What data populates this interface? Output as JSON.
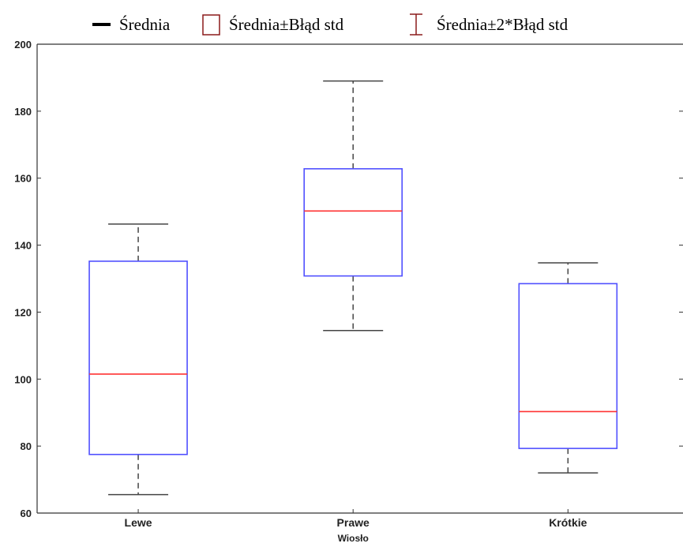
{
  "chart_data": {
    "type": "box",
    "legend": {
      "position": "top",
      "items": [
        {
          "symbol": "line",
          "label": "Średnia"
        },
        {
          "symbol": "box",
          "label": "Średnia±Błąd std"
        },
        {
          "symbol": "whisker",
          "label": "Średnia±2*Błąd std"
        }
      ]
    },
    "categories": [
      "Lewe",
      "Prawe",
      "Krótkie"
    ],
    "xlabel": "Wiosło",
    "ylabel": "",
    "ylim": [
      60,
      200
    ],
    "yticks": [
      60,
      80,
      100,
      120,
      140,
      160,
      180,
      200
    ],
    "boxes": [
      {
        "category": "Lewe",
        "mean": 101.5,
        "box_low": 77.5,
        "box_high": 135.2,
        "whisker_low": 65.5,
        "whisker_high": 146.3
      },
      {
        "category": "Prawe",
        "mean": 150.2,
        "box_low": 130.8,
        "box_high": 162.8,
        "whisker_low": 114.5,
        "whisker_high": 189.0
      },
      {
        "category": "Krótkie",
        "mean": 90.3,
        "box_low": 79.3,
        "box_high": 128.5,
        "whisker_low": 72.0,
        "whisker_high": 134.7
      }
    ],
    "grid": false,
    "colors": {
      "box": "#5050ff",
      "mean": "#ff3333",
      "whisker": "#444444",
      "legend_box": "#8b1a1a",
      "axis": "#333333"
    }
  }
}
